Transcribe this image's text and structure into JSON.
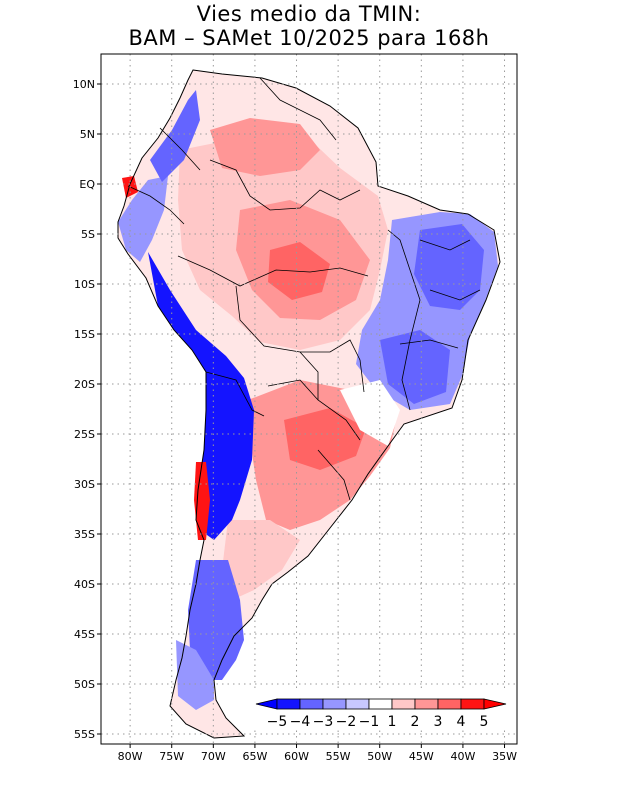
{
  "title": {
    "line1": "Vies medio da TMIN:",
    "line2": "BAM – SAMet 10/2025  para 168h"
  },
  "map": {
    "lon_range": [
      -83.5,
      -33.5
    ],
    "lat_range": [
      -56,
      13
    ],
    "lat_ticks": [
      {
        "value": 10,
        "label": "10N"
      },
      {
        "value": 5,
        "label": "5N"
      },
      {
        "value": 0,
        "label": "EQ"
      },
      {
        "value": -5,
        "label": "5S"
      },
      {
        "value": -10,
        "label": "10S"
      },
      {
        "value": -15,
        "label": "15S"
      },
      {
        "value": -20,
        "label": "20S"
      },
      {
        "value": -25,
        "label": "25S"
      },
      {
        "value": -30,
        "label": "30S"
      },
      {
        "value": -35,
        "label": "35S"
      },
      {
        "value": -40,
        "label": "40S"
      },
      {
        "value": -45,
        "label": "45S"
      },
      {
        "value": -50,
        "label": "50S"
      },
      {
        "value": -55,
        "label": "55S"
      }
    ],
    "lon_ticks": [
      {
        "value": -80,
        "label": "80W"
      },
      {
        "value": -75,
        "label": "75W"
      },
      {
        "value": -70,
        "label": "70W"
      },
      {
        "value": -65,
        "label": "65W"
      },
      {
        "value": -60,
        "label": "60W"
      },
      {
        "value": -55,
        "label": "55W"
      },
      {
        "value": -50,
        "label": "50W"
      },
      {
        "value": -45,
        "label": "45W"
      },
      {
        "value": -40,
        "label": "40W"
      },
      {
        "value": -35,
        "label": "35W"
      }
    ]
  },
  "colorbar": {
    "labels": [
      "−5",
      "−4",
      "−3",
      "−2",
      "−1",
      "1",
      "2",
      "3",
      "4",
      "5"
    ],
    "colors": [
      "#1414ff",
      "#6464ff",
      "#9696ff",
      "#c8c8ff",
      "#ffffff",
      "#ffc8c8",
      "#ff9696",
      "#ff6464",
      "#ff1414"
    ],
    "under_color": "#0000ff",
    "over_color": "#ff0000"
  }
}
